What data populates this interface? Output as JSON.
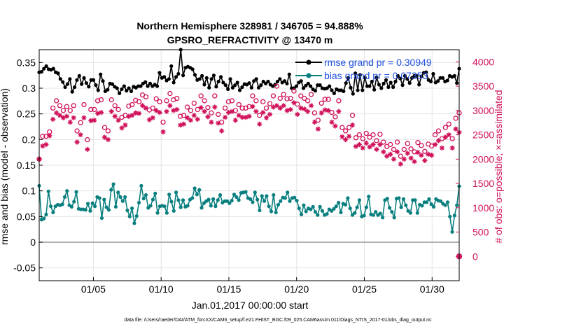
{
  "chart_data": {
    "type": "line",
    "title": "Northern Hemisphere 328981 / 346705 = 94.888%",
    "subtitle": "GPSRO_REFRACTIVITY @ 13470 m",
    "xlabel": "Jan.01,2017 00:00:00 start",
    "ylabel_left": "rmse and bias (model - observation)",
    "ylabel_right": "# of obs: o=possible; ×=assimilated",
    "footnote": "data file: /Users/raeder/DAI/ATM_forcXX/CAM6_setup/f.e21.FHIST_BGC.f09_025.CAM6assim.011/Diags_NTrS_2017-01/obs_diag_output.nc",
    "x_range_days": [
      1,
      32
    ],
    "x_ticks": [
      {
        "day": 5,
        "label": "01/05"
      },
      {
        "day": 10,
        "label": "01/10"
      },
      {
        "day": 15,
        "label": "01/15"
      },
      {
        "day": 20,
        "label": "01/20"
      },
      {
        "day": 25,
        "label": "01/25"
      },
      {
        "day": 30,
        "label": "01/30"
      }
    ],
    "y_left_range": [
      -0.075,
      0.375
    ],
    "y_left_ticks": [
      "-0.05",
      "0",
      "0.05",
      "0.1",
      "0.15",
      "0.2",
      "0.25",
      "0.3",
      "0.35"
    ],
    "y_right_range": [
      -500,
      4250
    ],
    "y_right_ticks": [
      "0",
      "500",
      "1000",
      "1500",
      "2000",
      "2500",
      "3000",
      "3500",
      "4000"
    ],
    "grid": true,
    "legend_position": "top-right",
    "colors": {
      "rmse": "#000000",
      "bias": "#0a7f7f",
      "obs": "#d0105a",
      "zero_line": "#999999"
    },
    "series": [
      {
        "name": "rmse grand pr = 0.30949",
        "axis": "left",
        "marker": "filled-circle",
        "color": "#000000",
        "values": [
          0.331,
          0.332,
          0.338,
          0.343,
          0.337,
          0.336,
          0.338,
          0.331,
          0.329,
          0.318,
          0.312,
          0.302,
          0.308,
          0.318,
          0.293,
          0.302,
          0.316,
          0.324,
          0.308,
          0.32,
          0.31,
          0.303,
          0.316,
          0.316,
          0.306,
          0.296,
          0.327,
          0.314,
          0.294,
          0.297,
          0.309,
          0.308,
          0.303,
          0.3,
          0.29,
          0.298,
          0.304,
          0.295,
          0.3,
          0.294,
          0.303,
          0.301,
          0.304,
          0.304,
          0.309,
          0.312,
          0.304,
          0.309,
          0.304,
          0.307,
          0.304,
          0.33,
          0.32,
          0.322,
          0.315,
          0.318,
          0.343,
          0.311,
          0.322,
          0.328,
          0.375,
          0.325,
          0.34,
          0.342,
          0.34,
          0.337,
          0.326,
          0.316,
          0.318,
          0.324,
          0.307,
          0.32,
          0.301,
          0.318,
          0.325,
          0.303,
          0.313,
          0.322,
          0.311,
          0.306,
          0.298,
          0.318,
          0.301,
          0.306,
          0.311,
          0.296,
          0.302,
          0.308,
          0.307,
          0.31,
          0.301,
          0.314,
          0.318,
          0.301,
          0.306,
          0.313,
          0.309,
          0.313,
          0.307,
          0.304,
          0.307,
          0.313,
          0.318,
          0.311,
          0.314,
          0.309,
          0.327,
          0.3,
          0.3,
          0.304,
          0.311,
          0.314,
          0.3,
          0.305,
          0.309,
          0.304,
          0.298,
          0.295,
          0.306,
          0.306,
          0.3,
          0.299,
          0.3,
          0.304,
          0.296,
          0.29,
          0.298,
          0.296,
          0.296,
          0.294,
          0.31,
          0.32,
          0.301,
          0.289,
          0.329,
          0.296,
          0.326,
          0.296,
          0.321,
          0.304,
          0.304,
          0.313,
          0.297,
          0.321,
          0.307,
          0.3,
          0.309,
          0.316,
          0.302,
          0.311,
          0.302,
          0.313,
          0.324,
          0.319,
          0.306,
          0.324,
          0.318,
          0.31,
          0.32,
          0.324,
          0.324,
          0.307,
          0.323,
          0.33,
          0.331,
          0.316,
          0.313,
          0.328,
          0.311,
          0.314,
          0.32,
          0.32,
          0.313,
          0.315,
          0.324,
          0.322,
          0.324,
          0.31,
          0.338
        ]
      },
      {
        "name": "bias grand pr = 0.07353",
        "axis": "left",
        "marker": "filled-circle",
        "color": "#0a7f7f",
        "values": [
          0.11,
          0.044,
          0.046,
          0.054,
          0.099,
          0.07,
          0.058,
          0.07,
          0.073,
          0.072,
          0.074,
          0.088,
          0.1,
          0.072,
          0.069,
          0.079,
          0.098,
          0.065,
          0.064,
          0.064,
          0.063,
          0.075,
          0.061,
          0.076,
          0.07,
          0.088,
          0.086,
          0.047,
          0.083,
          0.068,
          0.063,
          0.102,
          0.113,
          0.069,
          0.097,
          0.088,
          0.08,
          0.088,
          0.062,
          0.05,
          0.066,
          0.037,
          0.051,
          0.077,
          0.11,
          0.085,
          0.092,
          0.067,
          0.071,
          0.083,
          0.095,
          0.057,
          0.07,
          0.071,
          0.07,
          0.057,
          0.093,
          0.079,
          0.061,
          0.097,
          0.082,
          0.068,
          0.082,
          0.069,
          0.071,
          0.083,
          0.086,
          0.105,
          0.093,
          0.102,
          0.067,
          0.076,
          0.08,
          0.083,
          0.071,
          0.084,
          0.07,
          0.082,
          0.092,
          0.077,
          0.08,
          0.08,
          0.076,
          0.081,
          0.093,
          0.088,
          0.082,
          0.096,
          0.097,
          0.098,
          0.086,
          0.084,
          0.078,
          0.097,
          0.083,
          0.062,
          0.09,
          0.08,
          0.09,
          0.07,
          0.06,
          0.092,
          0.058,
          0.073,
          0.08,
          0.087,
          0.086,
          0.097,
          0.08,
          0.086,
          0.087,
          0.081,
          0.066,
          0.054,
          0.072,
          0.06,
          0.066,
          0.064,
          0.069,
          0.059,
          0.053,
          0.069,
          0.061,
          0.053,
          0.055,
          0.064,
          0.061,
          0.065,
          0.07,
          0.077,
          0.058,
          0.075,
          0.073,
          0.086,
          0.066,
          0.053,
          0.057,
          0.068,
          0.082,
          0.05,
          0.052,
          0.068,
          0.089,
          0.054,
          0.053,
          0.059,
          0.053,
          0.056,
          0.048,
          0.082,
          0.085,
          0.067,
          0.059,
          0.048,
          0.085,
          0.086,
          0.068,
          0.084,
          0.072,
          0.061,
          0.057,
          0.082,
          0.082,
          0.057,
          0.073,
          0.071,
          0.078,
          0.078,
          0.084,
          0.074,
          0.069,
          0.084,
          0.081,
          0.08,
          0.075,
          0.072,
          0.078,
          0.05,
          0.02,
          0.052,
          0.072,
          0.109
        ]
      },
      {
        "name": "",
        "axis": "right",
        "marker": "open-circle",
        "color": "#d0105a",
        "day_end": 32,
        "values": [
          2000,
          2470,
          2470,
          2560,
          3050,
          3200,
          3100,
          3000,
          3080,
          3000,
          3100,
          2580,
          2750,
          3120,
          2400,
          3020,
          3020,
          3200,
          3220,
          2650,
          2580,
          3220,
          3100,
          3020,
          2860,
          2900,
          3090,
          3120,
          3210,
          3180,
          3320,
          3280,
          3010,
          3050,
          3240,
          3180,
          2760,
          3200,
          3350,
          3220,
          3250,
          2880,
          2900,
          3070,
          3000,
          3150,
          3020,
          3300,
          3200,
          3060,
          2950,
          3300,
          2920,
          2760,
          3050,
          3180,
          3200,
          3000,
          3120,
          3050,
          3050,
          3080,
          3300,
          3200,
          2900,
          3180,
          3050,
          3140,
          3300,
          3500,
          3250,
          3330,
          3240,
          3250,
          3400,
          3130,
          3300,
          3250,
          3200,
          3330,
          2950,
          2800,
          3150,
          3230,
          3230,
          2960,
          2870,
          3200,
          2650,
          2580,
          2650,
          2900,
          2440,
          2500,
          2420,
          2530,
          2450,
          2500,
          2380,
          2510,
          2350,
          2260,
          2300,
          2200,
          2350,
          2060,
          2200,
          2320,
          2210,
          2150,
          2340,
          2280,
          2160,
          2310,
          2270,
          2500,
          2580,
          2420,
          2650,
          2720,
          2420,
          2840,
          2950
        ]
      },
      {
        "name": "",
        "axis": "right",
        "marker": "asterisk",
        "color": "#d0105a",
        "day_end": 32,
        "values": [
          2000,
          2270,
          2300,
          2480,
          2820,
          2950,
          2900,
          2850,
          2880,
          2760,
          2850,
          2350,
          2500,
          2850,
          2200,
          2790,
          2800,
          2940,
          2960,
          2450,
          2400,
          2980,
          2880,
          2800,
          2640,
          2700,
          2880,
          2900,
          2950,
          2940,
          3100,
          3050,
          2810,
          2850,
          3000,
          2960,
          2560,
          2980,
          3100,
          3000,
          3020,
          2700,
          2720,
          2850,
          2800,
          2900,
          2820,
          3060,
          2980,
          2870,
          2760,
          3070,
          2740,
          2580,
          2860,
          2960,
          2980,
          2800,
          2900,
          2860,
          2860,
          2880,
          3080,
          2980,
          2720,
          2960,
          2850,
          2920,
          3070,
          3100,
          3050,
          3100,
          3000,
          3020,
          3160,
          2920,
          3050,
          3030,
          2980,
          3100,
          2760,
          2620,
          2950,
          3010,
          3000,
          2760,
          2680,
          2980,
          2460,
          2400,
          2470,
          2700,
          2260,
          2300,
          2230,
          2330,
          2250,
          2300,
          2200,
          2300,
          2150,
          2060,
          2100,
          2000,
          2150,
          1900,
          2000,
          2120,
          2020,
          1950,
          2140,
          2080,
          1970,
          2100,
          2080,
          2300,
          2380,
          2230,
          2450,
          2500,
          2230,
          2620,
          2550
        ]
      }
    ],
    "right_axis_zero_markers": {
      "value": 0,
      "day": 32
    }
  }
}
